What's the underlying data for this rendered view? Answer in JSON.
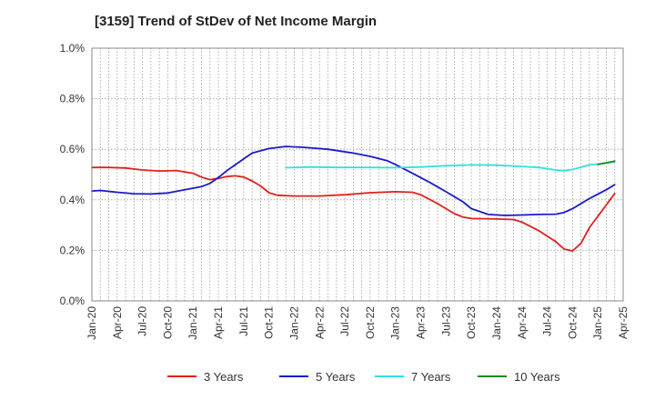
{
  "chart_data": {
    "type": "line",
    "title": "[3159]  Trend of StDev of Net Income Margin",
    "xlabel": "",
    "ylabel": "",
    "y_unit": "%",
    "ylim": [
      0,
      1.0
    ],
    "y_ticks": [
      "0.0%",
      "0.2%",
      "0.4%",
      "0.6%",
      "0.8%",
      "1.0%"
    ],
    "x_range": [
      "2020-01",
      "2025-04"
    ],
    "x_ticks": [
      "Jan-20",
      "Apr-20",
      "Jul-20",
      "Oct-20",
      "Jan-21",
      "Apr-21",
      "Jul-21",
      "Oct-21",
      "Jan-22",
      "Apr-22",
      "Jul-22",
      "Oct-22",
      "Jan-23",
      "Apr-23",
      "Jul-23",
      "Oct-23",
      "Jan-24",
      "Apr-24",
      "Jul-24",
      "Oct-24",
      "Jan-25",
      "Apr-25"
    ],
    "grid": true,
    "legend_position": "bottom",
    "series": [
      {
        "name": "3 Years",
        "color": "#e0201a",
        "points": [
          [
            "2020-01",
            0.528
          ],
          [
            "2020-03",
            0.528
          ],
          [
            "2020-05",
            0.526
          ],
          [
            "2020-07",
            0.518
          ],
          [
            "2020-09",
            0.514
          ],
          [
            "2020-11",
            0.516
          ],
          [
            "2021-01",
            0.505
          ],
          [
            "2021-02",
            0.49
          ],
          [
            "2021-03",
            0.48
          ],
          [
            "2021-04",
            0.485
          ],
          [
            "2021-05",
            0.492
          ],
          [
            "2021-06",
            0.495
          ],
          [
            "2021-07",
            0.49
          ],
          [
            "2021-08",
            0.475
          ],
          [
            "2021-09",
            0.455
          ],
          [
            "2021-10",
            0.428
          ],
          [
            "2021-11",
            0.418
          ],
          [
            "2022-01",
            0.415
          ],
          [
            "2022-04",
            0.415
          ],
          [
            "2022-07",
            0.42
          ],
          [
            "2022-10",
            0.428
          ],
          [
            "2023-01",
            0.432
          ],
          [
            "2023-03",
            0.43
          ],
          [
            "2023-04",
            0.42
          ],
          [
            "2023-06",
            0.385
          ],
          [
            "2023-08",
            0.345
          ],
          [
            "2023-09",
            0.332
          ],
          [
            "2023-10",
            0.326
          ],
          [
            "2024-01",
            0.324
          ],
          [
            "2024-03",
            0.322
          ],
          [
            "2024-04",
            0.312
          ],
          [
            "2024-06",
            0.278
          ],
          [
            "2024-08",
            0.235
          ],
          [
            "2024-09",
            0.205
          ],
          [
            "2024-10",
            0.198
          ],
          [
            "2024-11",
            0.228
          ],
          [
            "2024-12",
            0.29
          ],
          [
            "2025-02",
            0.38
          ],
          [
            "2025-03",
            0.425
          ]
        ]
      },
      {
        "name": "5 Years",
        "color": "#1a1acc",
        "points": [
          [
            "2020-01",
            0.435
          ],
          [
            "2020-02",
            0.437
          ],
          [
            "2020-04",
            0.43
          ],
          [
            "2020-06",
            0.424
          ],
          [
            "2020-08",
            0.423
          ],
          [
            "2020-10",
            0.427
          ],
          [
            "2020-12",
            0.44
          ],
          [
            "2021-02",
            0.452
          ],
          [
            "2021-03",
            0.465
          ],
          [
            "2021-04",
            0.488
          ],
          [
            "2021-05",
            0.515
          ],
          [
            "2021-07",
            0.562
          ],
          [
            "2021-08",
            0.585
          ],
          [
            "2021-10",
            0.603
          ],
          [
            "2021-12",
            0.611
          ],
          [
            "2022-02",
            0.608
          ],
          [
            "2022-05",
            0.6
          ],
          [
            "2022-08",
            0.585
          ],
          [
            "2022-10",
            0.572
          ],
          [
            "2022-12",
            0.555
          ],
          [
            "2023-01",
            0.54
          ],
          [
            "2023-03",
            0.505
          ],
          [
            "2023-05",
            0.47
          ],
          [
            "2023-07",
            0.432
          ],
          [
            "2023-09",
            0.392
          ],
          [
            "2023-10",
            0.365
          ],
          [
            "2023-12",
            0.342
          ],
          [
            "2024-02",
            0.338
          ],
          [
            "2024-04",
            0.34
          ],
          [
            "2024-06",
            0.342
          ],
          [
            "2024-08",
            0.343
          ],
          [
            "2024-09",
            0.35
          ],
          [
            "2024-10",
            0.365
          ],
          [
            "2024-12",
            0.405
          ],
          [
            "2025-02",
            0.44
          ],
          [
            "2025-03",
            0.46
          ]
        ]
      },
      {
        "name": "7 Years",
        "color": "#33e0e0",
        "points": [
          [
            "2021-12",
            0.527
          ],
          [
            "2022-03",
            0.53
          ],
          [
            "2022-06",
            0.528
          ],
          [
            "2022-10",
            0.528
          ],
          [
            "2023-01",
            0.527
          ],
          [
            "2023-04",
            0.53
          ],
          [
            "2023-07",
            0.535
          ],
          [
            "2023-10",
            0.538
          ],
          [
            "2024-01",
            0.537
          ],
          [
            "2024-04",
            0.532
          ],
          [
            "2024-06",
            0.528
          ],
          [
            "2024-08",
            0.518
          ],
          [
            "2024-09",
            0.515
          ],
          [
            "2024-10",
            0.52
          ],
          [
            "2024-12",
            0.538
          ],
          [
            "2025-02",
            0.545
          ],
          [
            "2025-03",
            0.55
          ]
        ]
      },
      {
        "name": "10 Years",
        "color": "#1a8c1a",
        "points": [
          [
            "2025-01",
            0.54
          ],
          [
            "2025-03",
            0.553
          ]
        ]
      }
    ]
  }
}
